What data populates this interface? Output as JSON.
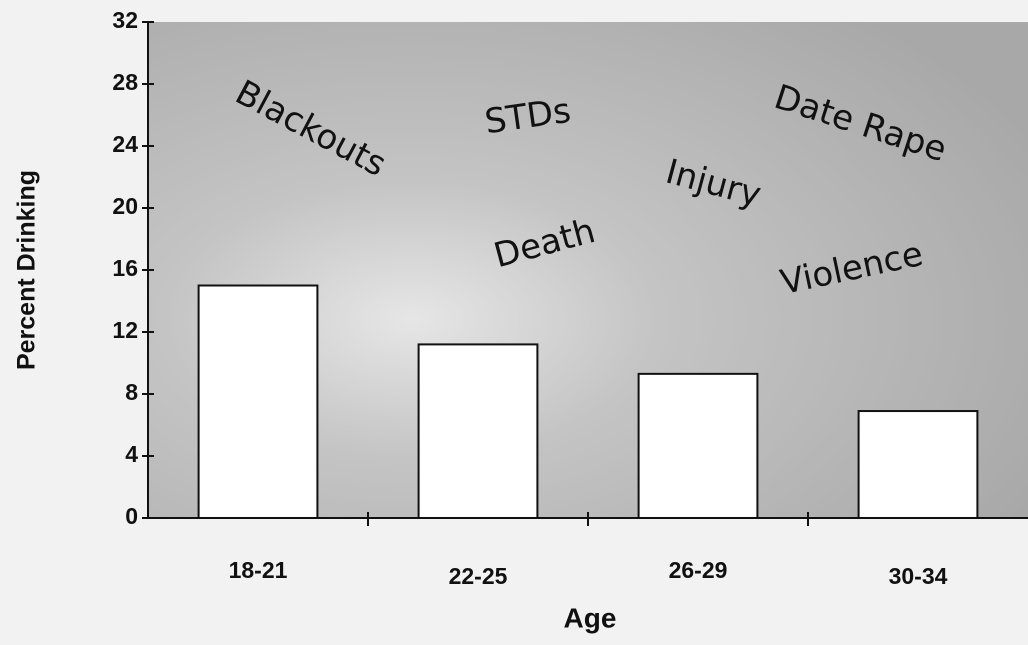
{
  "chart_data": {
    "type": "bar",
    "categories": [
      "18-21",
      "22-25",
      "26-29",
      "30-34"
    ],
    "values": [
      15,
      11.2,
      9.3,
      6.9
    ],
    "color": "#ffffff",
    "ylim": [
      0,
      32
    ],
    "yticks": [
      0,
      4,
      8,
      12,
      16,
      20,
      24,
      28,
      32
    ],
    "ylabel": "Percent Drinking",
    "xlabel": "Age",
    "annotations": [
      "Blackouts",
      "STDs",
      "Date Rape",
      "Injury",
      "Death",
      "Violence"
    ]
  }
}
